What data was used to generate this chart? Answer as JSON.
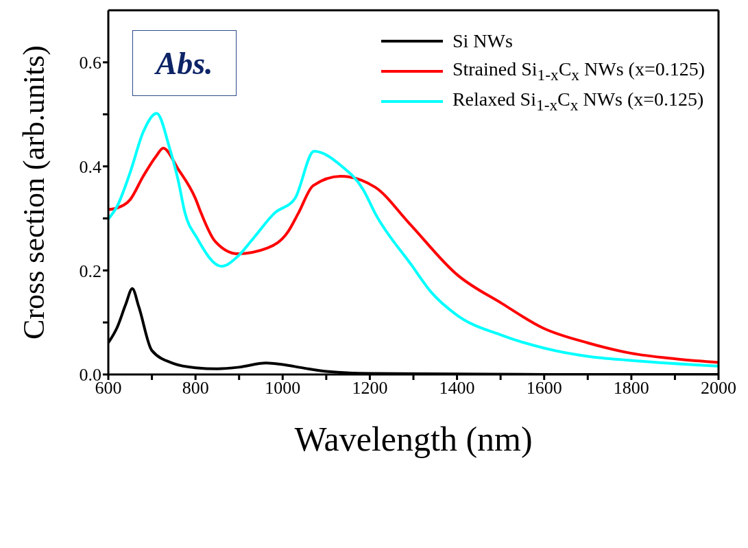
{
  "chart_data": {
    "type": "line",
    "xlabel": "Wavelength (nm)",
    "ylabel": "Cross section (arb.units)",
    "annotations": [
      "Abs."
    ],
    "xlim": [
      600,
      2000
    ],
    "ylim": [
      0,
      0.7
    ],
    "xticks": [
      600,
      {
        "value": 700,
        "label": null
      },
      800,
      {
        "value": 900,
        "label": null
      },
      1000,
      {
        "value": 1100,
        "label": null
      },
      1200,
      {
        "value": 1300,
        "label": null
      },
      1400,
      {
        "value": 1500,
        "label": null
      },
      1600,
      {
        "value": 1700,
        "label": null
      },
      1800,
      {
        "value": 1900,
        "label": null
      },
      2000
    ],
    "yticks": [
      {
        "value": 0,
        "label": "0.0"
      },
      {
        "value": 0.1,
        "label": null
      },
      0.2,
      {
        "value": 0.3,
        "label": null
      },
      0.4,
      {
        "value": 0.5,
        "label": null
      },
      0.6
    ],
    "legend": "top right",
    "marker": "none",
    "line_style": "solid",
    "series": [
      {
        "name": "Si NWs",
        "color": "#000000",
        "x": [
          600,
          620,
          640,
          655,
          670,
          700,
          750,
          800,
          850,
          900,
          962,
          1000,
          1050,
          1100,
          1200,
          1400,
          1600,
          2000
        ],
        "values": [
          0.061,
          0.09,
          0.135,
          0.165,
          0.13,
          0.046,
          0.021,
          0.013,
          0.011,
          0.014,
          0.022,
          0.019,
          0.012,
          0.006,
          0.002,
          0.001,
          0,
          0
        ]
      },
      {
        "name": "Strained Si$_{1-x}$C$_{x}$ NWs (x=0.125)",
        "color": "#ff0000",
        "x": [
          600,
          620,
          650,
          680,
          710,
          726,
          760,
          800,
          813,
          845,
          897,
          965,
          1012,
          1036,
          1070,
          1133,
          1212,
          1290,
          1400,
          1504,
          1598,
          1699,
          1798,
          1902,
          2000
        ],
        "values": [
          0.317,
          0.32,
          0.336,
          0.381,
          0.42,
          0.435,
          0.395,
          0.338,
          0.31,
          0.256,
          0.232,
          0.243,
          0.274,
          0.31,
          0.363,
          0.381,
          0.36,
          0.291,
          0.192,
          0.136,
          0.089,
          0.061,
          0.041,
          0.03,
          0.023
        ]
      },
      {
        "name": "Relaxed Si$_{1-x}$C$_{x}$ NWs (x=0.125)",
        "color": "#00ffff",
        "x": [
          600,
          620,
          650,
          680,
          711,
          740,
          760,
          776,
          803,
          860,
          897,
          934,
          981,
          1028,
          1072,
          1133,
          1185,
          1212,
          1295,
          1342,
          1400,
          1504,
          1598,
          1699,
          1798,
          2000
        ],
        "values": [
          0.299,
          0.323,
          0.388,
          0.466,
          0.502,
          0.437,
          0.374,
          0.31,
          0.263,
          0.208,
          0.227,
          0.263,
          0.31,
          0.338,
          0.429,
          0.402,
          0.355,
          0.31,
          0.211,
          0.157,
          0.114,
          0.075,
          0.051,
          0.035,
          0.027,
          0.016
        ]
      }
    ]
  }
}
